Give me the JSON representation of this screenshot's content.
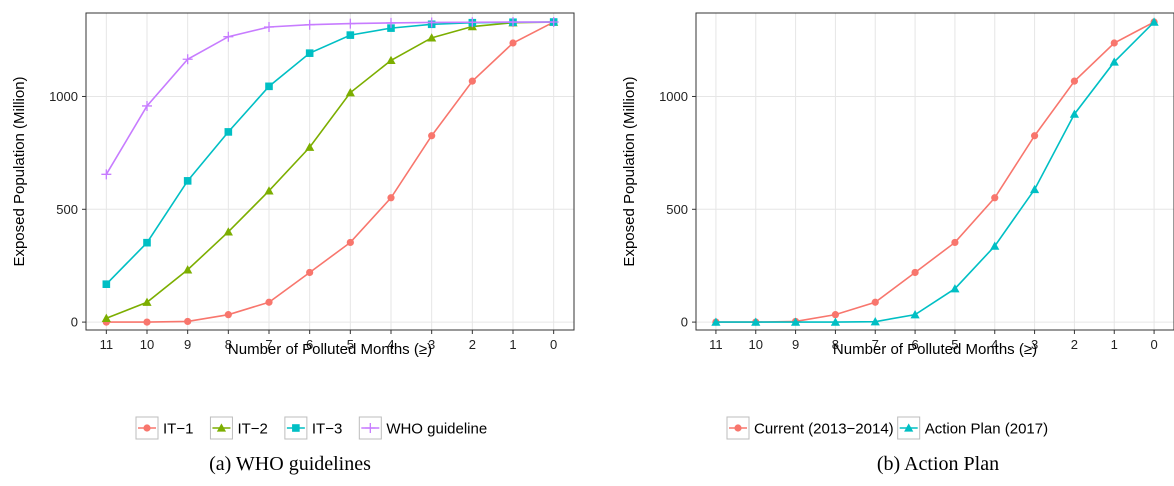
{
  "chart_data": [
    {
      "type": "line",
      "caption": "(a) WHO guidelines",
      "title": "",
      "xlabel": "Number of Polluted Months (≥)",
      "ylabel": "Exposed Population (Million)",
      "x": [
        11,
        10,
        9,
        8,
        7,
        6,
        5,
        4,
        3,
        2,
        1,
        0
      ],
      "xlim": [
        11.5,
        -0.5
      ],
      "ylim": [
        -35,
        1370
      ],
      "yticks": [
        0,
        500,
        1000
      ],
      "x_reversed": true,
      "grid": true,
      "legend_position": "bottom",
      "series": [
        {
          "name": "IT−1",
          "color": "#F8766D",
          "marker": "circle",
          "values": [
            0,
            0,
            3,
            33,
            88,
            220,
            353,
            551,
            826,
            1068,
            1237,
            1330
          ]
        },
        {
          "name": "IT−2",
          "color": "#7CAE00",
          "marker": "triangle",
          "values": [
            17,
            88,
            232,
            400,
            582,
            775,
            1017,
            1160,
            1260,
            1310,
            1327,
            1330
          ]
        },
        {
          "name": "IT−3",
          "color": "#00BFC4",
          "marker": "square",
          "values": [
            168,
            352,
            626,
            843,
            1045,
            1192,
            1272,
            1303,
            1320,
            1327,
            1329,
            1330
          ]
        },
        {
          "name": "WHO guideline",
          "color": "#C77CFF",
          "marker": "plus",
          "values": [
            655,
            958,
            1165,
            1265,
            1308,
            1318,
            1323,
            1326,
            1328,
            1329,
            1330,
            1330
          ]
        }
      ]
    },
    {
      "type": "line",
      "caption": "(b) Action Plan",
      "title": "",
      "xlabel": "Number of Polluted Months (≥)",
      "ylabel": "Exposed Population (Million)",
      "x": [
        11,
        10,
        9,
        8,
        7,
        6,
        5,
        4,
        3,
        2,
        1,
        0
      ],
      "xlim": [
        11.5,
        -0.5
      ],
      "ylim": [
        -35,
        1370
      ],
      "yticks": [
        0,
        500,
        1000
      ],
      "x_reversed": true,
      "grid": true,
      "legend_position": "bottom",
      "series": [
        {
          "name": "Current (2013−2014)",
          "color": "#F8766D",
          "marker": "circle",
          "values": [
            0,
            0,
            3,
            33,
            88,
            220,
            353,
            551,
            826,
            1068,
            1237,
            1330
          ]
        },
        {
          "name": "Action Plan (2017)",
          "color": "#00BFC4",
          "marker": "triangle",
          "values": [
            0,
            0,
            0,
            0,
            2,
            33,
            148,
            337,
            588,
            922,
            1153,
            1330
          ]
        }
      ]
    }
  ]
}
